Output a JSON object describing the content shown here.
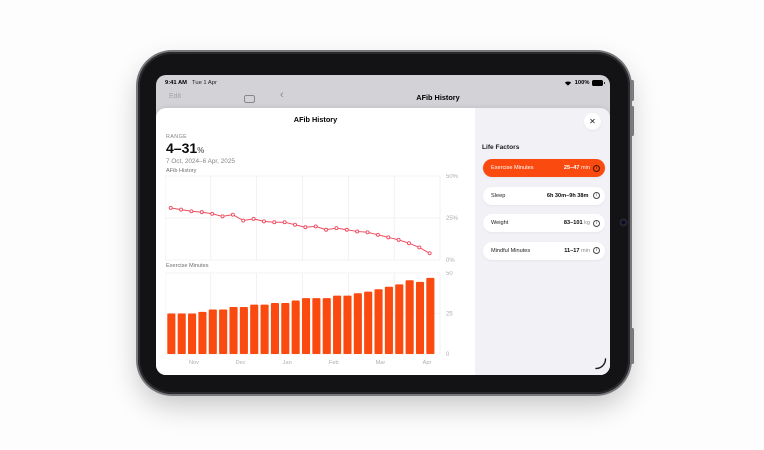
{
  "status_bar": {
    "time": "9:41 AM",
    "date": "Tue 1 Apr",
    "battery_percent": "100%"
  },
  "toolbar": {
    "edit_label": "Edit",
    "title": "AFib History"
  },
  "sheet": {
    "title": "AFib History",
    "range_label": "RANGE",
    "range_value": "4–31",
    "range_unit": "%",
    "date_range": "7 Oct, 2024–6 Apr, 2025"
  },
  "life_factors": {
    "heading": "Life Factors",
    "items": [
      {
        "label": "Exercise Minutes",
        "value": "25–47",
        "unit": "min",
        "selected": true
      },
      {
        "label": "Sleep",
        "value": "6h 30m–9h 38m",
        "unit": "",
        "selected": false
      },
      {
        "label": "Weight",
        "value": "83–101",
        "unit": "kg",
        "selected": false
      },
      {
        "label": "Mindful Minutes",
        "value": "11–17",
        "unit": "min",
        "selected": false
      }
    ]
  },
  "colors": {
    "accent_orange": "#fa4a0f",
    "line_red": "#ed4c5f",
    "panel_gray": "#f2f1f6",
    "chrome_gray": "#d3d2d7",
    "grid_gray": "#e9e8ee",
    "tick_gray": "#aeadb4"
  },
  "chart_data": [
    {
      "type": "line",
      "title": "AFib History",
      "x_unit": "week",
      "x": [
        1,
        2,
        3,
        4,
        5,
        6,
        7,
        8,
        9,
        10,
        11,
        12,
        13,
        14,
        15,
        16,
        17,
        18,
        19,
        20,
        21,
        22,
        23,
        24,
        25,
        26
      ],
      "values": [
        31,
        30,
        29,
        28.5,
        27.5,
        26,
        27,
        23.5,
        24.5,
        23,
        22.5,
        22.5,
        21,
        19.5,
        20,
        18,
        19,
        18,
        17,
        16.5,
        15,
        13.5,
        12,
        10,
        7.5,
        4
      ],
      "ylim": [
        0,
        50
      ],
      "yticks": [
        [
          50,
          "50%"
        ],
        [
          25,
          "25%"
        ],
        [
          0,
          "0%"
        ]
      ],
      "x_axis_labels": [
        "Nov",
        "Dec",
        "Jan",
        "Feb",
        "Mar",
        "Apr"
      ],
      "grid": true,
      "legend": "none",
      "color": "#ed4c5f"
    },
    {
      "type": "bar",
      "title": "Exercise Minutes",
      "x_unit": "week",
      "x": [
        1,
        2,
        3,
        4,
        5,
        6,
        7,
        8,
        9,
        10,
        11,
        12,
        13,
        14,
        15,
        16,
        17,
        18,
        19,
        20,
        21,
        22,
        23,
        24,
        25,
        26
      ],
      "values": [
        25,
        25,
        25,
        26,
        27.5,
        27.5,
        29,
        29,
        30.5,
        30.5,
        31.5,
        31.5,
        33,
        34.5,
        34.5,
        34.5,
        36,
        36,
        37.5,
        38.5,
        40,
        41.5,
        43,
        45.5,
        44.5,
        47
      ],
      "ylim": [
        0,
        50
      ],
      "yticks": [
        [
          50,
          "50"
        ],
        [
          25,
          "25"
        ],
        [
          0,
          "0"
        ]
      ],
      "x_axis_labels": [
        "Nov",
        "Dec",
        "Jan",
        "Feb",
        "Mar",
        "Apr"
      ],
      "grid": true,
      "legend": "none",
      "color": "#fa4a0f"
    }
  ]
}
